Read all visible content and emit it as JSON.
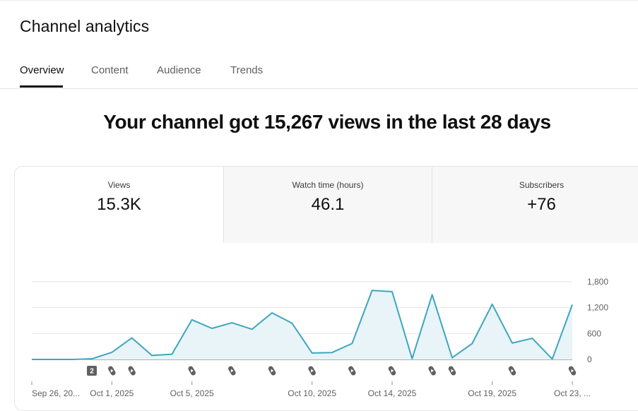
{
  "page": {
    "title": "Channel analytics"
  },
  "tabs": [
    {
      "label": "Overview",
      "active": true
    },
    {
      "label": "Content",
      "active": false
    },
    {
      "label": "Audience",
      "active": false
    },
    {
      "label": "Trends",
      "active": false
    }
  ],
  "headline": "Your channel got 15,267 views in the last 28 days",
  "metrics": [
    {
      "label": "Views",
      "value": "15.3K"
    },
    {
      "label": "Watch time (hours)",
      "value": "46.1"
    },
    {
      "label": "Subscribers",
      "value": "+76"
    }
  ],
  "colors": {
    "line": "#3ea6c0",
    "fill": "#e8f4f8",
    "grid": "#e5e5e5"
  },
  "chart_data": {
    "type": "area",
    "series": [
      {
        "values": [
          0,
          0,
          0,
          15,
          165,
          500,
          95,
          120,
          920,
          720,
          850,
          700,
          1080,
          840,
          150,
          160,
          370,
          1600,
          1570,
          20,
          1500,
          40,
          370,
          1280,
          380,
          490,
          10,
          1270
        ]
      }
    ],
    "ylim": [
      0,
      1800
    ],
    "yticks": [
      "0",
      "600",
      "1,200",
      "1,800"
    ],
    "x_labels": [
      {
        "index": 0,
        "text": "Sep 26, 20..."
      },
      {
        "index": 4,
        "text": "Oct 1, 2025"
      },
      {
        "index": 8,
        "text": "Oct 5, 2025"
      },
      {
        "index": 14,
        "text": "Oct 10, 2025"
      },
      {
        "index": 18,
        "text": "Oct 14, 2025"
      },
      {
        "index": 23,
        "text": "Oct 19, 2025"
      },
      {
        "index": 27,
        "text": "Oct 23, ..."
      }
    ],
    "markers": [
      {
        "index": 3,
        "type": "badge",
        "text": "2"
      },
      {
        "index": 4,
        "type": "shorts-icon"
      },
      {
        "index": 5,
        "type": "shorts-icon"
      },
      {
        "index": 8,
        "type": "shorts-icon"
      },
      {
        "index": 10,
        "type": "shorts-icon"
      },
      {
        "index": 12,
        "type": "shorts-icon"
      },
      {
        "index": 14,
        "type": "shorts-icon"
      },
      {
        "index": 16,
        "type": "shorts-icon"
      },
      {
        "index": 18,
        "type": "shorts-icon"
      },
      {
        "index": 20,
        "type": "shorts-icon"
      },
      {
        "index": 21,
        "type": "shorts-icon"
      },
      {
        "index": 24,
        "type": "shorts-icon"
      },
      {
        "index": 27,
        "type": "shorts-icon"
      }
    ]
  }
}
